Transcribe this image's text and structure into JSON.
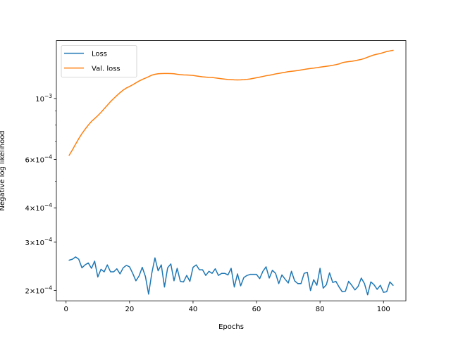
{
  "chart_data": {
    "type": "line",
    "xlabel": "Epochs",
    "ylabel": "Negative log likelihood",
    "yscale": "log",
    "xlim": [
      -3.05,
      107.05
    ],
    "ylim": [
      0.0001835,
      0.001625
    ],
    "x_ticks": [
      {
        "value": 0,
        "label": "0"
      },
      {
        "value": 20,
        "label": "20"
      },
      {
        "value": 40,
        "label": "40"
      },
      {
        "value": 60,
        "label": "60"
      },
      {
        "value": 80,
        "label": "80"
      },
      {
        "value": 100,
        "label": "100"
      }
    ],
    "y_ticks": [
      {
        "value": 0.0002,
        "mantissa": "2",
        "times": "×",
        "base": "10",
        "exp": "−4"
      },
      {
        "value": 0.0003,
        "mantissa": "3",
        "times": "×",
        "base": "10",
        "exp": "−4"
      },
      {
        "value": 0.0004,
        "mantissa": "4",
        "times": "×",
        "base": "10",
        "exp": "−4"
      },
      {
        "value": 0.0006,
        "mantissa": "6",
        "times": "×",
        "base": "10",
        "exp": "−4"
      },
      {
        "value": 0.001,
        "mantissa": "",
        "times": "",
        "base": "10",
        "exp": "−3"
      }
    ],
    "y_minor_ticks": [
      0.0005,
      0.0007,
      0.0008,
      0.0009
    ],
    "grid": false,
    "legend": "upper-left",
    "series": [
      {
        "name": "Loss",
        "color": "#1f77b4",
        "points": [
          [
            1,
            0.000258
          ],
          [
            2,
            0.00026
          ],
          [
            3,
            0.000265
          ],
          [
            4,
            0.00026
          ],
          [
            5,
            0.000242
          ],
          [
            6,
            0.000248
          ],
          [
            7,
            0.000252
          ],
          [
            8,
            0.000241
          ],
          [
            9,
            0.000256
          ],
          [
            10,
            0.000224
          ],
          [
            11,
            0.000239
          ],
          [
            12,
            0.000234
          ],
          [
            13,
            0.000248
          ],
          [
            14,
            0.000234
          ],
          [
            15,
            0.000234
          ],
          [
            16,
            0.00024
          ],
          [
            17,
            0.00023
          ],
          [
            18,
            0.000242
          ],
          [
            19,
            0.000247
          ],
          [
            20,
            0.000244
          ],
          [
            21,
            0.000231
          ],
          [
            22,
            0.000217
          ],
          [
            23,
            0.000226
          ],
          [
            24,
            0.000243
          ],
          [
            25,
            0.000225
          ],
          [
            26,
            0.000194
          ],
          [
            27,
            0.000231
          ],
          [
            28,
            0.000263
          ],
          [
            29,
            0.000236
          ],
          [
            30,
            0.000248
          ],
          [
            31,
            0.000206
          ],
          [
            32,
            0.000242
          ],
          [
            33,
            0.00025
          ],
          [
            34,
            0.000217
          ],
          [
            35,
            0.000241
          ],
          [
            36,
            0.000216
          ],
          [
            37,
            0.000215
          ],
          [
            38,
            0.000227
          ],
          [
            39,
            0.000216
          ],
          [
            40,
            0.000243
          ],
          [
            41,
            0.000248
          ],
          [
            42,
            0.000238
          ],
          [
            43,
            0.000238
          ],
          [
            44,
            0.000227
          ],
          [
            45,
            0.000235
          ],
          [
            46,
            0.000231
          ],
          [
            47,
            0.00024
          ],
          [
            48,
            0.000227
          ],
          [
            49,
            0.000231
          ],
          [
            50,
            0.000231
          ],
          [
            51,
            0.000228
          ],
          [
            52,
            0.000241
          ],
          [
            53,
            0.000206
          ],
          [
            54,
            0.00023
          ],
          [
            55,
            0.000208
          ],
          [
            56,
            0.000223
          ],
          [
            57,
            0.000227
          ],
          [
            58,
            0.000229
          ],
          [
            59,
            0.000229
          ],
          [
            60,
            0.000229
          ],
          [
            61,
            0.000221
          ],
          [
            62,
            0.000235
          ],
          [
            63,
            0.000244
          ],
          [
            64,
            0.000222
          ],
          [
            65,
            0.000237
          ],
          [
            66,
            0.000231
          ],
          [
            67,
            0.000212
          ],
          [
            68,
            0.000228
          ],
          [
            69,
            0.00022
          ],
          [
            70,
            0.000213
          ],
          [
            71,
            0.000235
          ],
          [
            72,
            0.000217
          ],
          [
            73,
            0.000212
          ],
          [
            74,
            0.000212
          ],
          [
            75,
            0.000231
          ],
          [
            76,
            0.000233
          ],
          [
            77,
            0.0002
          ],
          [
            78,
            0.000219
          ],
          [
            79,
            0.000209
          ],
          [
            80,
            0.000241
          ],
          [
            81,
            0.000204
          ],
          [
            82,
            0.00021
          ],
          [
            83,
            0.000232
          ],
          [
            84,
            0.000214
          ],
          [
            85,
            0.000216
          ],
          [
            86,
            0.000206
          ],
          [
            87,
            0.000198
          ],
          [
            88,
            0.000199
          ],
          [
            89,
            0.000216
          ],
          [
            90,
            0.000209
          ],
          [
            91,
            0.000201
          ],
          [
            92,
            0.000207
          ],
          [
            93,
            0.000222
          ],
          [
            94,
            0.000212
          ],
          [
            95,
            0.000193
          ],
          [
            96,
            0.000215
          ],
          [
            97,
            0.00021
          ],
          [
            98,
            0.000202
          ],
          [
            99,
            0.000209
          ],
          [
            100,
            0.000197
          ],
          [
            101,
            0.000198
          ],
          [
            102,
            0.000215
          ],
          [
            103,
            0.000209
          ]
        ]
      },
      {
        "name": "Val. loss",
        "color": "#ff7f0e",
        "points": [
          [
            1,
            0.000622
          ],
          [
            2,
            0.00065
          ],
          [
            3,
            0.000682
          ],
          [
            4,
            0.000714
          ],
          [
            5,
            0.000745
          ],
          [
            6,
            0.000773
          ],
          [
            7,
            0.0008
          ],
          [
            8,
            0.000825
          ],
          [
            9,
            0.000845
          ],
          [
            10,
            0.000866
          ],
          [
            11,
            0.00089
          ],
          [
            12,
            0.000917
          ],
          [
            13,
            0.000945
          ],
          [
            14,
            0.000974
          ],
          [
            15,
            0.001
          ],
          [
            16,
            0.001025
          ],
          [
            17,
            0.00105
          ],
          [
            18,
            0.001073
          ],
          [
            19,
            0.001092
          ],
          [
            20,
            0.001106
          ],
          [
            21,
            0.001122
          ],
          [
            22,
            0.00114
          ],
          [
            23,
            0.001158
          ],
          [
            24,
            0.001173
          ],
          [
            25,
            0.001186
          ],
          [
            26,
            0.0012
          ],
          [
            27,
            0.001216
          ],
          [
            28,
            0.001225
          ],
          [
            29,
            0.00123
          ],
          [
            30,
            0.001232
          ],
          [
            31,
            0.001233
          ],
          [
            32,
            0.001233
          ],
          [
            33,
            0.001232
          ],
          [
            34,
            0.00123
          ],
          [
            35,
            0.001225
          ],
          [
            36,
            0.001221
          ],
          [
            37,
            0.001219
          ],
          [
            38,
            0.001218
          ],
          [
            39,
            0.001216
          ],
          [
            40,
            0.001213
          ],
          [
            41,
            0.001208
          ],
          [
            42,
            0.001203
          ],
          [
            43,
            0.001199
          ],
          [
            44,
            0.001196
          ],
          [
            45,
            0.001194
          ],
          [
            46,
            0.001193
          ],
          [
            47,
            0.001188
          ],
          [
            48,
            0.001184
          ],
          [
            49,
            0.00118
          ],
          [
            50,
            0.001176
          ],
          [
            51,
            0.001173
          ],
          [
            52,
            0.001171
          ],
          [
            53,
            0.001169
          ],
          [
            54,
            0.001168
          ],
          [
            55,
            0.001169
          ],
          [
            56,
            0.001171
          ],
          [
            57,
            0.001174
          ],
          [
            58,
            0.001178
          ],
          [
            59,
            0.001184
          ],
          [
            60,
            0.00119
          ],
          [
            61,
            0.001196
          ],
          [
            62,
            0.001203
          ],
          [
            63,
            0.00121
          ],
          [
            64,
            0.001215
          ],
          [
            65,
            0.001221
          ],
          [
            66,
            0.001229
          ],
          [
            67,
            0.001234
          ],
          [
            68,
            0.00124
          ],
          [
            69,
            0.001246
          ],
          [
            70,
            0.001252
          ],
          [
            71,
            0.001256
          ],
          [
            72,
            0.00126
          ],
          [
            73,
            0.001264
          ],
          [
            74,
            0.00127
          ],
          [
            75,
            0.001276
          ],
          [
            76,
            0.001281
          ],
          [
            77,
            0.001286
          ],
          [
            78,
            0.00129
          ],
          [
            79,
            0.001295
          ],
          [
            80,
            0.0013
          ],
          [
            81,
            0.001305
          ],
          [
            82,
            0.00131
          ],
          [
            83,
            0.001315
          ],
          [
            84,
            0.001321
          ],
          [
            85,
            0.001328
          ],
          [
            86,
            0.001336
          ],
          [
            87,
            0.00135
          ],
          [
            88,
            0.001357
          ],
          [
            89,
            0.001362
          ],
          [
            90,
            0.001366
          ],
          [
            91,
            0.001372
          ],
          [
            92,
            0.00138
          ],
          [
            93,
            0.001388
          ],
          [
            94,
            0.001399
          ],
          [
            95,
            0.001414
          ],
          [
            96,
            0.001428
          ],
          [
            97,
            0.001441
          ],
          [
            98,
            0.00145
          ],
          [
            99,
            0.001458
          ],
          [
            100,
            0.00147
          ],
          [
            101,
            0.001482
          ],
          [
            102,
            0.00149
          ],
          [
            103,
            0.001497
          ]
        ]
      }
    ]
  }
}
